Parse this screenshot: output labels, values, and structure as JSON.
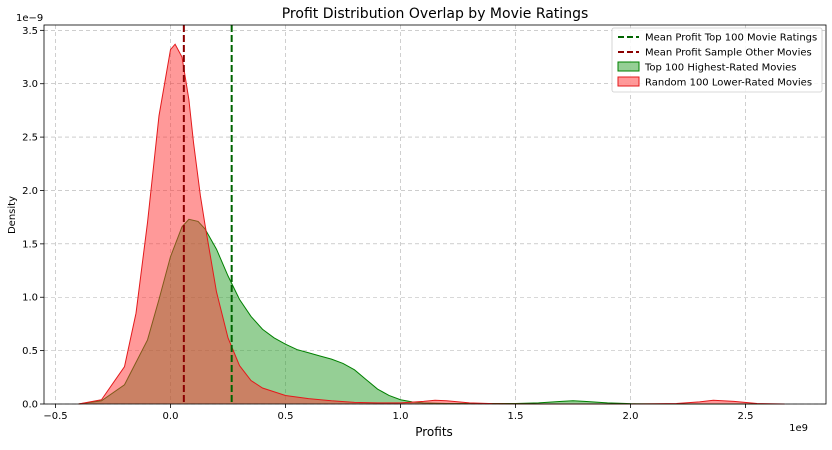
{
  "chart_data": {
    "type": "area",
    "title": "Profit Distribution Overlap by Movie Ratings",
    "xlabel": "Profits",
    "ylabel": "Density",
    "x_offset_text": "1e9",
    "y_offset_text": "1e−9",
    "xlim": [
      -0.55,
      2.85
    ],
    "ylim": [
      0,
      3.55
    ],
    "x_ticks": [
      -0.5,
      0.0,
      0.5,
      1.0,
      1.5,
      2.0,
      2.5
    ],
    "x_tick_labels": [
      "−0.5",
      "0.0",
      "0.5",
      "1.0",
      "1.5",
      "2.0",
      "2.5"
    ],
    "y_ticks": [
      0.0,
      0.5,
      1.0,
      1.5,
      2.0,
      2.5,
      3.0,
      3.5
    ],
    "y_tick_labels": [
      "0.0",
      "0.5",
      "1.0",
      "1.5",
      "2.0",
      "2.5",
      "3.0",
      "3.5"
    ],
    "grid": true,
    "legend_position": "top-right",
    "series": [
      {
        "name": "Top 100 Highest-Rated Movies",
        "kind": "kde",
        "line_color": "#008000",
        "fill_color": "#2ca02c",
        "fill_opacity": 0.5,
        "x": [
          -0.4,
          -0.3,
          -0.2,
          -0.1,
          -0.05,
          0.0,
          0.05,
          0.08,
          0.12,
          0.15,
          0.2,
          0.25,
          0.3,
          0.35,
          0.4,
          0.45,
          0.5,
          0.55,
          0.6,
          0.65,
          0.7,
          0.75,
          0.8,
          0.85,
          0.9,
          0.95,
          1.0,
          1.05,
          1.1,
          1.2,
          1.3,
          1.4,
          1.5,
          1.6,
          1.7,
          1.75,
          1.8,
          1.9,
          2.0,
          2.1,
          2.2,
          2.4,
          2.67
        ],
        "y": [
          0.0,
          0.03,
          0.18,
          0.6,
          0.98,
          1.38,
          1.66,
          1.73,
          1.71,
          1.64,
          1.45,
          1.2,
          0.98,
          0.82,
          0.7,
          0.62,
          0.56,
          0.51,
          0.48,
          0.45,
          0.42,
          0.38,
          0.32,
          0.23,
          0.14,
          0.08,
          0.04,
          0.02,
          0.01,
          0.005,
          0.005,
          0.005,
          0.005,
          0.01,
          0.025,
          0.03,
          0.025,
          0.01,
          0.003,
          0.001,
          0.0,
          0.0,
          0.0
        ]
      },
      {
        "name": "Random 100 Lower-Rated Movies",
        "kind": "kde",
        "line_color": "#e31a1c",
        "fill_color": "#ff3333",
        "fill_opacity": 0.5,
        "x": [
          -0.4,
          -0.3,
          -0.2,
          -0.15,
          -0.1,
          -0.05,
          0.0,
          0.02,
          0.05,
          0.08,
          0.1,
          0.13,
          0.15,
          0.2,
          0.25,
          0.3,
          0.35,
          0.4,
          0.5,
          0.6,
          0.7,
          0.8,
          0.9,
          1.0,
          1.1,
          1.15,
          1.2,
          1.3,
          1.4,
          1.5,
          1.6,
          1.8,
          2.0,
          2.2,
          2.3,
          2.36,
          2.45,
          2.55,
          2.67
        ],
        "y": [
          0.0,
          0.04,
          0.35,
          0.85,
          1.7,
          2.7,
          3.32,
          3.37,
          3.25,
          2.85,
          2.45,
          1.95,
          1.68,
          1.05,
          0.62,
          0.36,
          0.22,
          0.15,
          0.08,
          0.05,
          0.03,
          0.015,
          0.01,
          0.01,
          0.025,
          0.035,
          0.03,
          0.01,
          0.003,
          0.001,
          0.0,
          0.0,
          0.0,
          0.005,
          0.02,
          0.035,
          0.025,
          0.005,
          0.0
        ]
      }
    ],
    "reference_lines": [
      {
        "name": "Mean Profit Top 100 Movie Ratings",
        "x": 0.266,
        "color": "#006400",
        "style": "dashed"
      },
      {
        "name": "Mean Profit Sample Other Movies",
        "x": 0.058,
        "color": "#8b0000",
        "style": "dashed"
      }
    ],
    "legend": [
      {
        "label": "Mean Profit Top 100 Movie Ratings",
        "kind": "line",
        "color": "#006400"
      },
      {
        "label": "Mean Profit Sample Other Movies",
        "kind": "line",
        "color": "#8b0000"
      },
      {
        "label": "Top 100 Highest-Rated Movies",
        "kind": "patch",
        "color": "#2ca02c",
        "edge": "#008000"
      },
      {
        "label": "Random 100 Lower-Rated Movies",
        "kind": "patch",
        "color": "#ff3333",
        "edge": "#e31a1c"
      }
    ]
  }
}
